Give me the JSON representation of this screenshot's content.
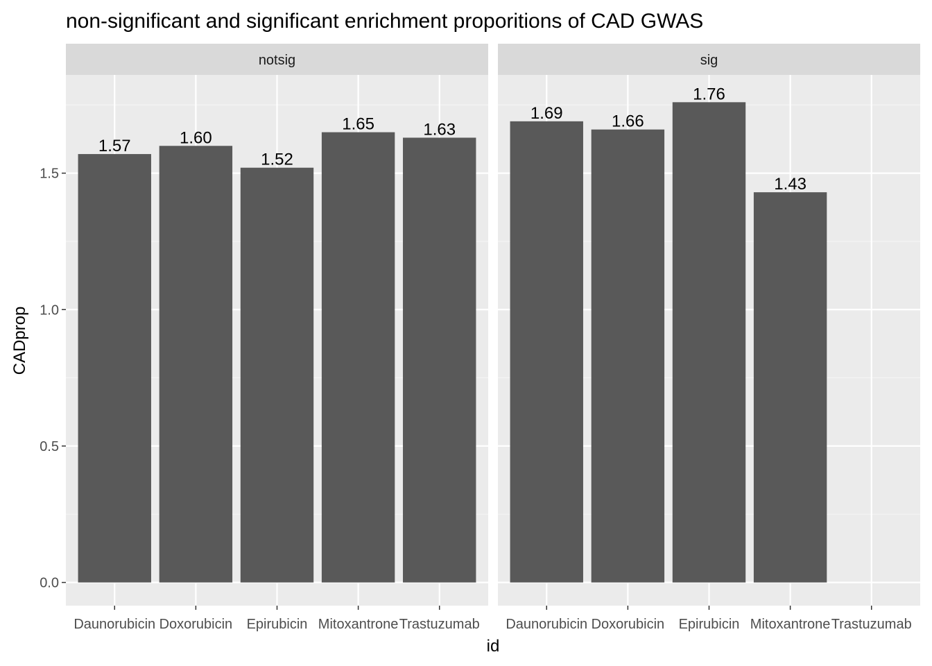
{
  "chart_data": {
    "type": "bar",
    "title": "non-significant and significant enrichment proporitions of CAD GWAS",
    "xlabel": "id",
    "ylabel": "CADprop",
    "categories": [
      "Daunorubicin",
      "Doxorubicin",
      "Epirubicin",
      "Mitoxantrone",
      "Trastuzumab"
    ],
    "ylim": [
      -0.085,
      1.86
    ],
    "yticks": [
      0.0,
      0.5,
      1.0,
      1.5
    ],
    "ytick_labels": [
      "0.0",
      "0.5",
      "1.0",
      "1.5"
    ],
    "facets": [
      {
        "name": "notsig",
        "values": [
          1.57,
          1.6,
          1.52,
          1.65,
          1.63
        ],
        "labels": [
          "1.57",
          "1.60",
          "1.52",
          "1.65",
          "1.63"
        ]
      },
      {
        "name": "sig",
        "values": [
          1.69,
          1.66,
          1.76,
          1.43,
          null
        ],
        "labels": [
          "1.69",
          "1.66",
          "1.76",
          "1.43",
          null
        ]
      }
    ],
    "grid": true,
    "legend": "none",
    "colors": {
      "bar": "#595959",
      "panel": "#ebebeb",
      "strip": "#d9d9d9",
      "grid_major": "#ffffff",
      "grid_minor": "#f5f5f5",
      "tick": "#333333"
    }
  }
}
